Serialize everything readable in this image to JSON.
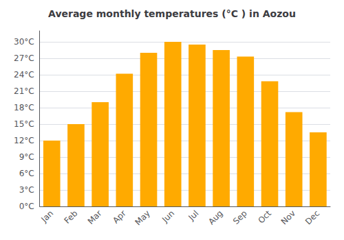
{
  "chart_data": {
    "type": "bar",
    "title": "Average monthly temperatures (°C ) in Aozou",
    "categories": [
      "Jan",
      "Feb",
      "Mar",
      "Apr",
      "May",
      "Jun",
      "Jul",
      "Aug",
      "Sep",
      "Oct",
      "Nov",
      "Dec"
    ],
    "values": [
      12,
      15,
      19,
      24.2,
      28,
      30,
      29.5,
      28.5,
      27.3,
      22.8,
      17.2,
      13.5
    ],
    "color": "#FFAA00",
    "ylim": [
      0,
      32
    ],
    "yticks": [
      {
        "value": 0,
        "label": "0°C"
      },
      {
        "value": 3,
        "label": "3°C"
      },
      {
        "value": 6,
        "label": "6°C"
      },
      {
        "value": 9,
        "label": "9°C"
      },
      {
        "value": 12,
        "label": "12°C"
      },
      {
        "value": 15,
        "label": "15°C"
      },
      {
        "value": 18,
        "label": "18°C"
      },
      {
        "value": 21,
        "label": "21°C"
      },
      {
        "value": 24,
        "label": "24°C"
      },
      {
        "value": 27,
        "label": "27°C"
      },
      {
        "value": 30,
        "label": "30°C"
      }
    ],
    "grid": true
  }
}
